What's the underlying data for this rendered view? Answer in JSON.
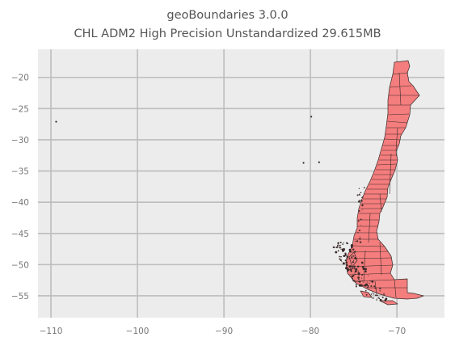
{
  "title_lines": [
    "geoBoundaries 3.0.0",
    "CHL ADM2 High Precision Unstandardized 29.615MB"
  ],
  "colors": {
    "fill": "#f47d7d",
    "edge": "#3a2a2a",
    "grid": "#bdbdbd",
    "background": "#ececec",
    "text": "#777777"
  },
  "chart_data": {
    "type": "map",
    "title": "geoBoundaries 3.0.0 CHL ADM2 High Precision Unstandardized 29.615MB",
    "xlim": [
      -111.5,
      -64.5
    ],
    "ylim": [
      -58.5,
      -15.5
    ],
    "x_ticks": [
      -110,
      -100,
      -90,
      -80,
      -70
    ],
    "y_ticks": [
      -20,
      -25,
      -30,
      -35,
      -40,
      -45,
      -50,
      -55
    ],
    "x_tick_labels": [
      "−110",
      "−100",
      "−90",
      "−80",
      "−70"
    ],
    "y_tick_labels": [
      "−20",
      "−25",
      "−30",
      "−35",
      "−40",
      "−45",
      "−50",
      "−55"
    ],
    "grid": true,
    "islands": [
      {
        "lon": -109.4,
        "lat": -27.1
      },
      {
        "lon": -80.8,
        "lat": -33.7
      },
      {
        "lon": -79.0,
        "lat": -33.6
      },
      {
        "lon": -79.9,
        "lat": -26.3
      }
    ]
  }
}
